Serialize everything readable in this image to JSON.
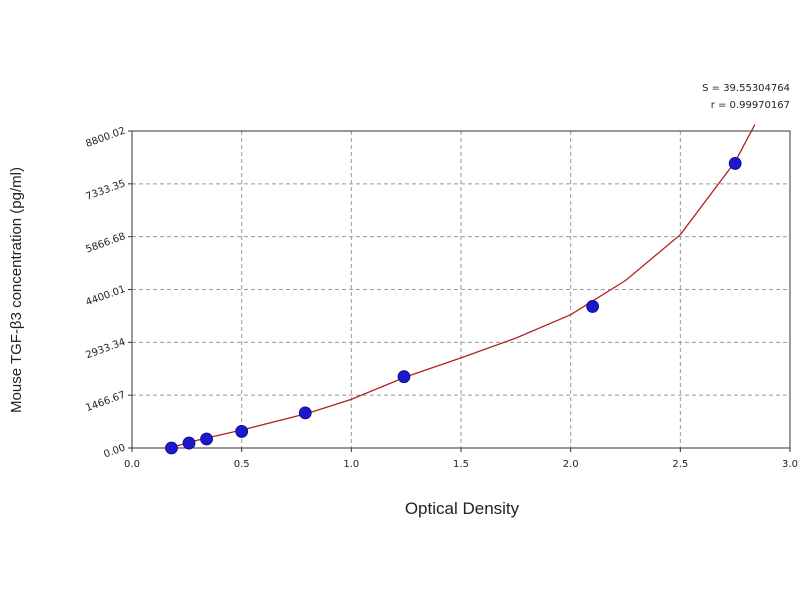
{
  "chart_data": {
    "type": "scatter",
    "xlabel": "Optical Density",
    "ylabel": "Mouse TGF-β3 concentration (pg/ml)",
    "xlim": [
      0.0,
      3.0
    ],
    "ylim": [
      0.0,
      8800.02
    ],
    "x_ticks": [
      0.0,
      0.5,
      1.0,
      1.5,
      2.0,
      2.5,
      3.0
    ],
    "x_tick_labels": [
      "0.0",
      "0.5",
      "1.0",
      "1.5",
      "2.0",
      "2.5",
      "3.0"
    ],
    "y_ticks": [
      0.0,
      1466.67,
      2933.34,
      4400.01,
      5866.68,
      7333.35,
      8800.02
    ],
    "y_tick_labels": [
      "0.00",
      "1466.67",
      "2933.34",
      "4400.01",
      "5866.68",
      "7333.35",
      "8800.02"
    ],
    "grid": true,
    "stats": {
      "s_label": "S = 39.55304764",
      "r_label": "r = 0.99970167"
    },
    "points": [
      {
        "x": 0.18,
        "y": 0
      },
      {
        "x": 0.26,
        "y": 137
      },
      {
        "x": 0.34,
        "y": 250
      },
      {
        "x": 0.5,
        "y": 460
      },
      {
        "x": 0.79,
        "y": 975
      },
      {
        "x": 1.24,
        "y": 1980
      },
      {
        "x": 2.1,
        "y": 3930
      },
      {
        "x": 2.75,
        "y": 7900
      }
    ],
    "fit_curve": {
      "color": "#b22222",
      "x": [
        0.14,
        0.3,
        0.5,
        0.8,
        1.0,
        1.25,
        1.5,
        1.75,
        2.0,
        2.25,
        2.5,
        2.75,
        2.84
      ],
      "y": [
        -50,
        220,
        500,
        960,
        1350,
        1980,
        2500,
        3050,
        3700,
        4650,
        5920,
        7950,
        8980
      ]
    },
    "colors": {
      "point": "#1a1acc",
      "curve": "#b22222",
      "grid": "#999999",
      "axis": "#333333"
    }
  }
}
